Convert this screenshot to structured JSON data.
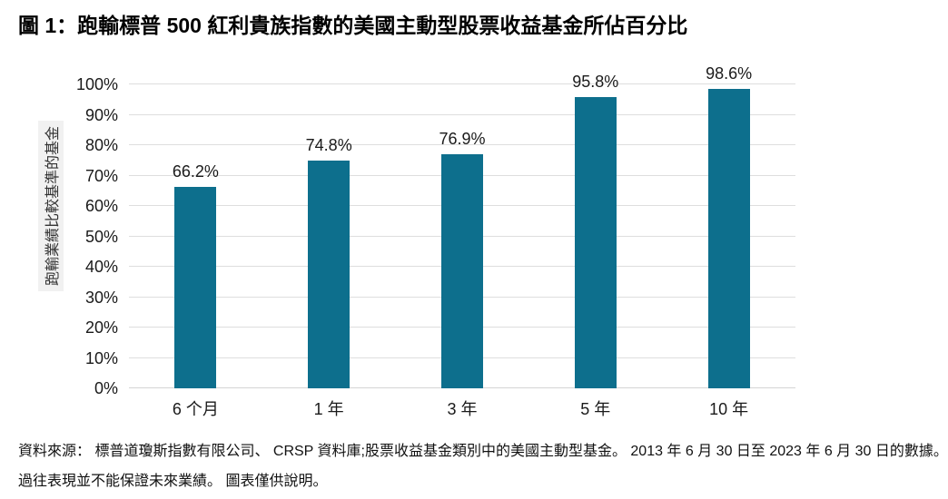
{
  "page": {
    "title": "圖 1：跑輸標普 500 紅利貴族指數的美國主動型股票收益基金所佔百分比"
  },
  "chart_data": {
    "type": "bar",
    "title": "跑輸標普 500 紅利貴族指數的美國主動型股票收益基金所佔百分比",
    "categories": [
      "6 个月",
      "1 年",
      "3 年",
      "5 年",
      "10 年"
    ],
    "values": [
      66.2,
      74.8,
      76.9,
      95.8,
      98.6
    ],
    "data_labels": [
      "66.2%",
      "74.8%",
      "76.9%",
      "95.8%",
      "98.6%"
    ],
    "xlabel": "",
    "ylabel": "跑輸業績比較基準的基金",
    "ylim": [
      0,
      100
    ],
    "ytick_step": 10,
    "ytick_labels": [
      "0%",
      "10%",
      "20%",
      "30%",
      "40%",
      "50%",
      "60%",
      "70%",
      "80%",
      "90%",
      "100%"
    ],
    "grid": "horizontal",
    "legend": "none",
    "bar_color": "#0D6F8D"
  },
  "footer": {
    "line1": "資料來源： 標普道瓊斯指數有限公司、 CRSP 資料庫;股票收益基金類別中的美國主動型基金。 2013 年 6 月 30 日至 2023 年 6 月 30 日的數據。",
    "line2": "過往表現並不能保證未來業績。 圖表僅供說明。"
  },
  "colors": {
    "bar": "#0D6F8D",
    "gridline": "#DEDEDE",
    "baseline": "#D4D4D4",
    "text": "#1A1A1A",
    "ylabel_background": "#F1F1F1"
  }
}
